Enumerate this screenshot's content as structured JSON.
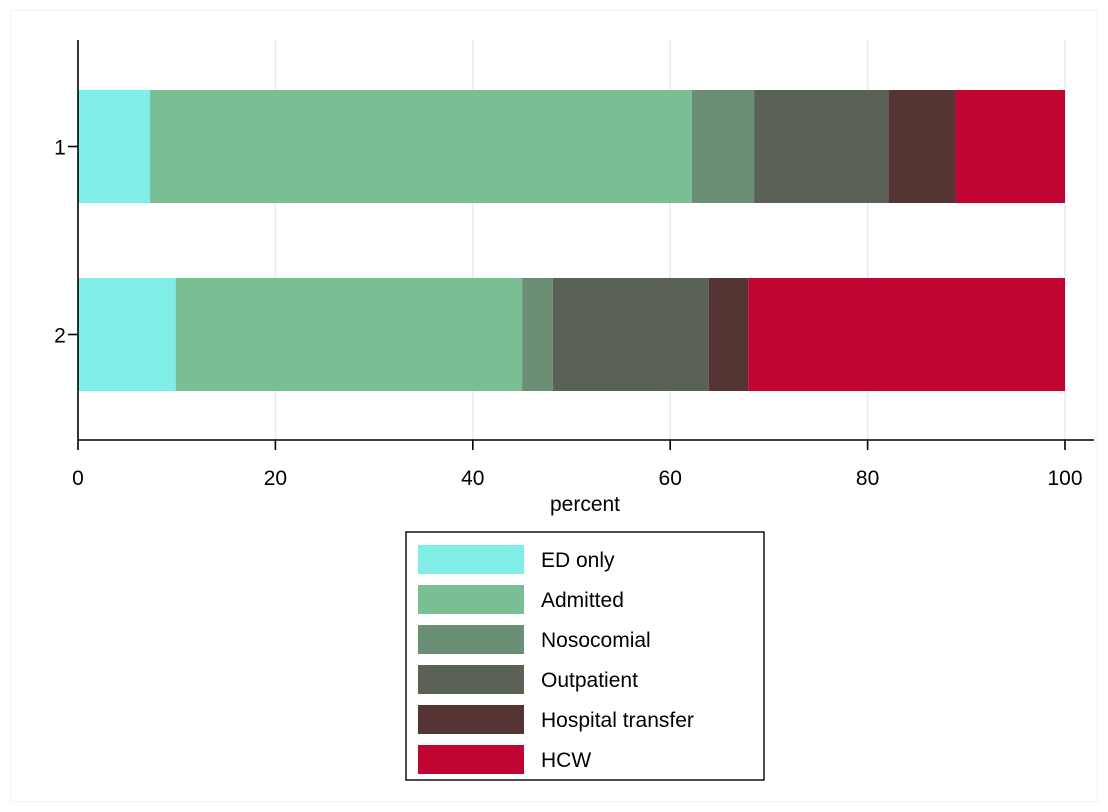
{
  "chart_data": {
    "type": "bar",
    "orientation": "horizontal",
    "stacked": true,
    "categories": [
      "1",
      "2"
    ],
    "series": [
      {
        "name": "ED only",
        "values": [
          7.3,
          9.9
        ],
        "color": "#80ede6"
      },
      {
        "name": "Admitted",
        "values": [
          54.9,
          35.1
        ],
        "color": "#79bf93"
      },
      {
        "name": "Nosocomial",
        "values": [
          6.3,
          3.1
        ],
        "color": "#6b8f74"
      },
      {
        "name": "Outpatient",
        "values": [
          13.6,
          15.8
        ],
        "color": "#5a6157"
      },
      {
        "name": "Hospital transfer",
        "values": [
          6.8,
          4.0
        ],
        "color": "#553434"
      },
      {
        "name": "HCW",
        "values": [
          11.1,
          32.1
        ],
        "color": "#c10533"
      }
    ],
    "title": "",
    "xlabel": "percent",
    "ylabel": "",
    "xlim": [
      0,
      100
    ],
    "xticks": [
      "0",
      "20",
      "40",
      "60",
      "80",
      "100"
    ],
    "grid": "vertical",
    "legend_position": "bottom"
  }
}
